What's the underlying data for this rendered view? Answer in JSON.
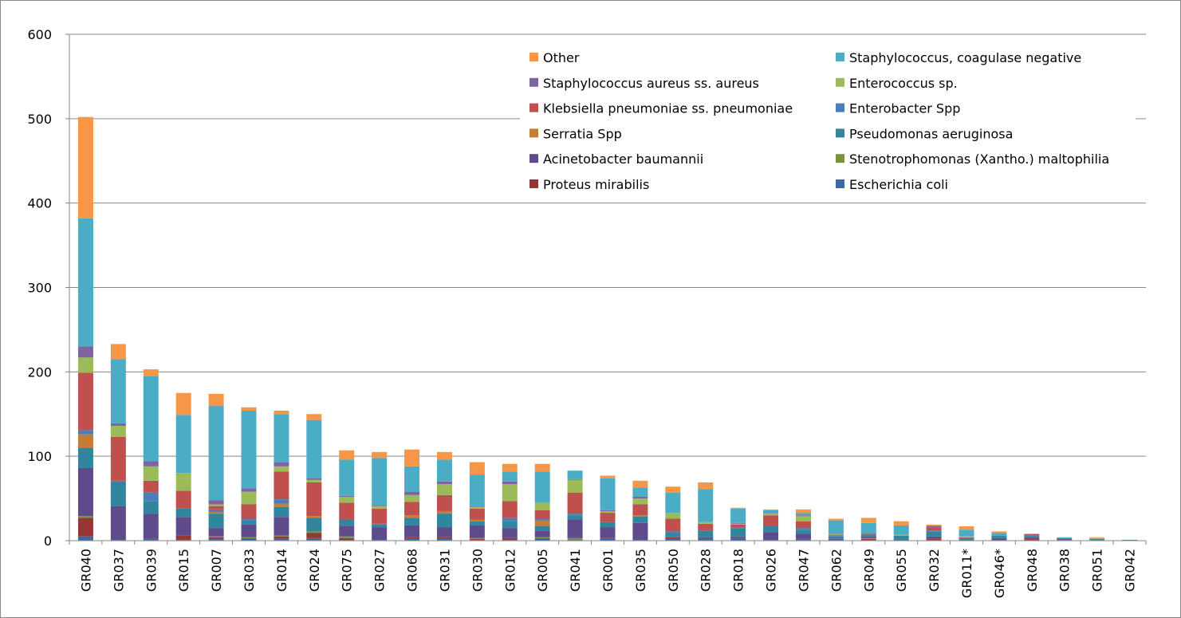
{
  "chart_data": {
    "type": "bar",
    "stacked": true,
    "title": "",
    "xlabel": "",
    "ylabel": "",
    "ylim": [
      0,
      600
    ],
    "yticks": [
      0,
      100,
      200,
      300,
      400,
      500,
      600
    ],
    "grid": true,
    "legend_position": "top-right",
    "categories": [
      "GR040",
      "GR037",
      "GR039",
      "GR015",
      "GR007",
      "GR033",
      "GR014",
      "GR024",
      "GR075",
      "GR027",
      "GR068",
      "GR031",
      "GR030",
      "GR012",
      "GR005",
      "GR041",
      "GR001",
      "GR035",
      "GR050",
      "GR028",
      "GR018",
      "GR026",
      "GR047",
      "GR062",
      "GR049",
      "GR055",
      "GR032",
      "GR011*",
      "GR046*",
      "GR048",
      "GR038",
      "GR051",
      "GR042"
    ],
    "series": [
      {
        "name": "Escherichia coli",
        "color": "#3a68a8",
        "values": [
          5,
          1,
          2,
          1,
          2,
          2,
          2,
          3,
          1,
          1,
          2,
          2,
          1,
          1,
          2,
          1,
          2,
          1,
          2,
          2,
          2,
          1,
          2,
          1,
          1,
          1,
          1,
          1,
          1,
          1,
          0,
          0,
          0
        ]
      },
      {
        "name": "Proteus mirabilis",
        "color": "#953735",
        "values": [
          22,
          0,
          0,
          5,
          2,
          1,
          3,
          6,
          2,
          0,
          2,
          2,
          1,
          2,
          1,
          0,
          1,
          0,
          2,
          0,
          1,
          0,
          0,
          0,
          1,
          0,
          1,
          0,
          0,
          1,
          0,
          0,
          0
        ]
      },
      {
        "name": "Stenotrophomonas (Xantho.) maltophilia",
        "color": "#76923c",
        "values": [
          2,
          0,
          0,
          0,
          1,
          1,
          1,
          2,
          2,
          0,
          0,
          0,
          1,
          0,
          1,
          2,
          0,
          0,
          0,
          0,
          0,
          0,
          0,
          0,
          1,
          0,
          0,
          0,
          0,
          0,
          1,
          1,
          0
        ]
      },
      {
        "name": "Acinetobacter baumannii",
        "color": "#5f4b8b",
        "values": [
          57,
          40,
          30,
          22,
          10,
          15,
          22,
          0,
          12,
          15,
          14,
          12,
          15,
          12,
          8,
          22,
          13,
          20,
          0,
          2,
          2,
          9,
          6,
          1,
          2,
          0,
          3,
          0,
          2,
          2,
          1,
          0,
          0
        ]
      },
      {
        "name": "Pseudomonas aeruginosa",
        "color": "#31859c",
        "values": [
          24,
          28,
          15,
          10,
          17,
          5,
          12,
          16,
          8,
          3,
          9,
          16,
          5,
          8,
          5,
          5,
          6,
          8,
          5,
          8,
          10,
          7,
          5,
          3,
          2,
          5,
          6,
          2,
          3,
          2,
          1,
          1,
          1
        ]
      },
      {
        "name": "Serratia Spp",
        "color": "#c77c35",
        "values": [
          16,
          0,
          0,
          0,
          2,
          0,
          4,
          2,
          0,
          0,
          3,
          3,
          2,
          0,
          7,
          0,
          0,
          1,
          0,
          0,
          0,
          0,
          0,
          0,
          0,
          0,
          0,
          0,
          0,
          0,
          0,
          0,
          0
        ]
      },
      {
        "name": "Enterobacter Spp",
        "color": "#4a7ebb",
        "values": [
          5,
          2,
          10,
          0,
          3,
          2,
          5,
          0,
          0,
          1,
          0,
          0,
          0,
          4,
          2,
          2,
          0,
          0,
          2,
          0,
          1,
          0,
          2,
          1,
          0,
          0,
          1,
          0,
          0,
          0,
          0,
          0,
          0
        ]
      },
      {
        "name": "Klebsiella pneumoniae ss. pneumoniae",
        "color": "#c0504d",
        "values": [
          68,
          52,
          14,
          21,
          4,
          17,
          33,
          40,
          20,
          18,
          16,
          19,
          13,
          20,
          10,
          25,
          11,
          13,
          15,
          8,
          3,
          13,
          8,
          1,
          1,
          0,
          4,
          1,
          0,
          2,
          0,
          0,
          0
        ]
      },
      {
        "name": "Enterococcus sp.",
        "color": "#9bbb59",
        "values": [
          18,
          13,
          17,
          21,
          2,
          15,
          6,
          3,
          7,
          3,
          8,
          13,
          2,
          20,
          9,
          15,
          2,
          7,
          7,
          2,
          1,
          2,
          6,
          1,
          0,
          1,
          0,
          1,
          0,
          0,
          0,
          1,
          0
        ]
      },
      {
        "name": "Staphylococcus aureus ss. aureus",
        "color": "#8064a2",
        "values": [
          13,
          3,
          6,
          0,
          5,
          4,
          5,
          2,
          1,
          1,
          4,
          3,
          1,
          3,
          0,
          1,
          1,
          2,
          0,
          0,
          1,
          0,
          1,
          0,
          0,
          0,
          1,
          0,
          0,
          0,
          0,
          0,
          0
        ]
      },
      {
        "name": "Staphylococcus, coagulase negative",
        "color": "#4bacc6",
        "values": [
          152,
          76,
          101,
          69,
          112,
          92,
          57,
          69,
          43,
          56,
          30,
          26,
          37,
          12,
          37,
          10,
          38,
          11,
          24,
          39,
          17,
          4,
          3,
          16,
          13,
          11,
          1,
          8,
          3,
          0,
          1,
          0,
          0
        ]
      },
      {
        "name": "Other",
        "color": "#f79646",
        "values": [
          120,
          18,
          8,
          26,
          14,
          4,
          4,
          7,
          11,
          7,
          20,
          9,
          15,
          9,
          9,
          0,
          3,
          8,
          7,
          8,
          1,
          1,
          4,
          2,
          6,
          5,
          1,
          4,
          2,
          0,
          0,
          1,
          0
        ]
      }
    ],
    "legend_order": [
      [
        "Other",
        "Staphylococcus, coagulase negative"
      ],
      [
        "Staphylococcus aureus ss. aureus",
        "Enterococcus sp."
      ],
      [
        "Klebsiella pneumoniae ss. pneumoniae",
        "Enterobacter Spp"
      ],
      [
        "Serratia Spp",
        "Pseudomonas aeruginosa"
      ],
      [
        "Acinetobacter baumannii",
        "Stenotrophomonas (Xantho.) maltophilia"
      ],
      [
        "Proteus mirabilis",
        "Escherichia coli"
      ]
    ]
  }
}
